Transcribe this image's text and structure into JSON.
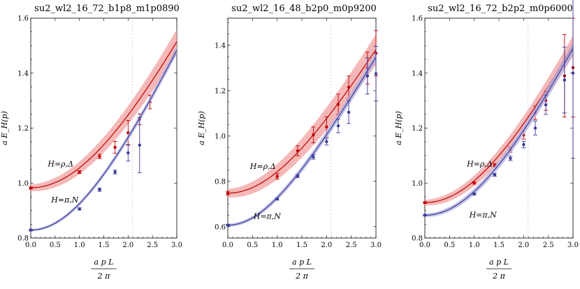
{
  "chart_data": [
    {
      "type": "line",
      "title": "su2_wl2_16_72_b1p8_m1p0890",
      "ylabel": "a E_H(p)",
      "xlabel_num": "a p L",
      "xlabel_den": "2 π",
      "xlim": [
        0,
        3.0
      ],
      "ylim": [
        0.8,
        1.6
      ],
      "xticks": [
        "0.0",
        "0.5",
        "1.0",
        "1.5",
        "2.0",
        "2.5",
        "3.0"
      ],
      "yticks": [
        "0.8",
        "1.0",
        "1.2",
        "1.4",
        "1.6"
      ],
      "vline": 2.09,
      "series": [
        {
          "name": "H=ρ,Δ",
          "color": "#c00000",
          "band_color": "#f2a0a0",
          "fit_mass": 0.983,
          "fit_scale": 0.1475,
          "band": 0.012,
          "points": [
            {
              "x": 0.0,
              "y": 0.982,
              "err": 0.004
            },
            {
              "x": 1.0,
              "y": 1.04,
              "err": 0.005
            },
            {
              "x": 1.414,
              "y": 1.097,
              "err": 0.008
            },
            {
              "x": 1.732,
              "y": 1.13,
              "err": 0.022
            },
            {
              "x": 2.0,
              "y": 1.183,
              "err": 0.045
            },
            {
              "x": 2.236,
              "y": 1.232,
              "err": 0.02
            },
            {
              "x": 2.449,
              "y": 1.295,
              "err": 0.025
            }
          ]
        },
        {
          "name": "H=π,N",
          "color": "#3a3a9a",
          "band_color": "#b0b0e0",
          "fit_mass": 0.829,
          "fit_scale": 0.168,
          "band": 0.004,
          "points": [
            {
              "x": 0.0,
              "y": 0.829,
              "err": 0.003
            },
            {
              "x": 1.0,
              "y": 0.906,
              "err": 0.004
            },
            {
              "x": 1.414,
              "y": 0.976,
              "err": 0.006
            },
            {
              "x": 1.732,
              "y": 1.04,
              "err": 0.007
            },
            {
              "x": 2.0,
              "y": 1.11,
              "err": 0.03
            },
            {
              "x": 2.236,
              "y": 1.138,
              "err": 0.1
            }
          ]
        }
      ],
      "annotations": [
        {
          "text": "H=ρ,Δ",
          "x": 0.35,
          "y": 1.06
        },
        {
          "text": "H=π,N",
          "x": 0.42,
          "y": 0.93
        }
      ]
    },
    {
      "type": "line",
      "title": "su2_wl2_16_48_b2p0_m0p9200",
      "ylabel": "a E_H(p)",
      "xlabel_num": "a p L",
      "xlabel_den": "2 π",
      "xlim": [
        0,
        3.0
      ],
      "ylim": [
        0.55,
        1.52
      ],
      "xticks": [
        "0.0",
        "0.5",
        "1.0",
        "1.5",
        "2.0",
        "2.5",
        "3.0"
      ],
      "yticks": [
        "0.6",
        "0.8",
        "1.0",
        "1.2",
        "1.4"
      ],
      "vline": 2.09,
      "series": [
        {
          "name": "H=ρ,Δ",
          "color": "#c00000",
          "band_color": "#f2a0a0",
          "fit_mass": 0.748,
          "fit_scale": 0.15,
          "band": 0.018,
          "points": [
            {
              "x": 0.0,
              "y": 0.748,
              "err": 0.008
            },
            {
              "x": 1.0,
              "y": 0.822,
              "err": 0.012
            },
            {
              "x": 1.414,
              "y": 0.935,
              "err": 0.022
            },
            {
              "x": 1.732,
              "y": 1.005,
              "err": 0.035
            },
            {
              "x": 2.0,
              "y": 1.04,
              "err": 0.045
            },
            {
              "x": 2.236,
              "y": 1.14,
              "err": 0.045
            },
            {
              "x": 2.449,
              "y": 1.215,
              "err": 0.05
            },
            {
              "x": 2.828,
              "y": 1.3,
              "err": 0.07
            },
            {
              "x": 3.0,
              "y": 1.365,
              "err": 0.1
            }
          ]
        },
        {
          "name": "H=π,N",
          "color": "#3a3a9a",
          "band_color": "#b0b0e0",
          "fit_mass": 0.607,
          "fit_scale": 0.161,
          "band": 0.006,
          "points": [
            {
              "x": 0.0,
              "y": 0.607,
              "err": 0.003
            },
            {
              "x": 1.0,
              "y": 0.722,
              "err": 0.004
            },
            {
              "x": 1.414,
              "y": 0.823,
              "err": 0.006
            },
            {
              "x": 1.732,
              "y": 0.908,
              "err": 0.01
            },
            {
              "x": 2.0,
              "y": 0.975,
              "err": 0.015
            },
            {
              "x": 2.236,
              "y": 1.045,
              "err": 0.03
            },
            {
              "x": 2.449,
              "y": 1.105,
              "err": 0.05
            },
            {
              "x": 2.828,
              "y": 1.265,
              "err": 0.08
            },
            {
              "x": 3.0,
              "y": 1.275,
              "err": 0.12
            }
          ]
        }
      ],
      "annotations": [
        {
          "text": "H=ρ,Δ",
          "x": 0.45,
          "y": 0.855
        },
        {
          "text": "H=π,N",
          "x": 0.52,
          "y": 0.635
        }
      ]
    },
    {
      "type": "line",
      "title": "su2_wl2_16_72_b2p2_m0p6000",
      "ylabel": "a E_H(p)",
      "xlabel_num": "a p L",
      "xlabel_den": "2 π",
      "xlim": [
        0,
        3.0
      ],
      "ylim": [
        0.8,
        1.6
      ],
      "xticks": [
        "0.0",
        "0.5",
        "1.0",
        "1.5",
        "2.0",
        "2.5",
        "3.0"
      ],
      "yticks": [
        "0.8",
        "1.0",
        "1.2",
        "1.4",
        "1.6"
      ],
      "vline": 2.09,
      "series": [
        {
          "name": "H=ρ,Δ",
          "color": "#c00000",
          "band_color": "#f2a0a0",
          "fit_mass": 0.929,
          "fit_scale": 0.154,
          "band": 0.01,
          "points": [
            {
              "x": 0.0,
              "y": 0.929,
              "err": 0.003
            },
            {
              "x": 1.0,
              "y": 1.0,
              "err": 0.004
            },
            {
              "x": 1.414,
              "y": 1.065,
              "err": 0.006
            },
            {
              "x": 1.732,
              "y": 1.122,
              "err": 0.01
            },
            {
              "x": 2.0,
              "y": 1.175,
              "err": 0.015
            },
            {
              "x": 2.236,
              "y": 1.255,
              "err": 0.025
            },
            {
              "x": 2.449,
              "y": 1.3,
              "err": 0.035
            },
            {
              "x": 2.828,
              "y": 1.39,
              "err": 0.15
            },
            {
              "x": 3.0,
              "y": 1.42,
              "err": 0.18
            }
          ]
        },
        {
          "name": "H=π,N",
          "color": "#3a3a9a",
          "band_color": "#b0b0e0",
          "fit_mass": 0.883,
          "fit_scale": 0.16,
          "band": 0.006,
          "points": [
            {
              "x": 0.0,
              "y": 0.883,
              "err": 0.002
            },
            {
              "x": 1.0,
              "y": 0.96,
              "err": 0.003
            },
            {
              "x": 1.414,
              "y": 1.03,
              "err": 0.005
            },
            {
              "x": 1.732,
              "y": 1.09,
              "err": 0.008
            },
            {
              "x": 2.0,
              "y": 1.14,
              "err": 0.012
            },
            {
              "x": 2.236,
              "y": 1.2,
              "err": 0.025
            },
            {
              "x": 2.449,
              "y": 1.285,
              "err": 0.035
            },
            {
              "x": 2.828,
              "y": 1.375,
              "err": 0.12
            },
            {
              "x": 3.0,
              "y": 1.4,
              "err": 0.31
            }
          ]
        }
      ],
      "annotations": [
        {
          "text": "H=ρ,Δ",
          "x": 0.85,
          "y": 1.06
        },
        {
          "text": "H=π,N",
          "x": 0.9,
          "y": 0.875
        }
      ]
    }
  ]
}
